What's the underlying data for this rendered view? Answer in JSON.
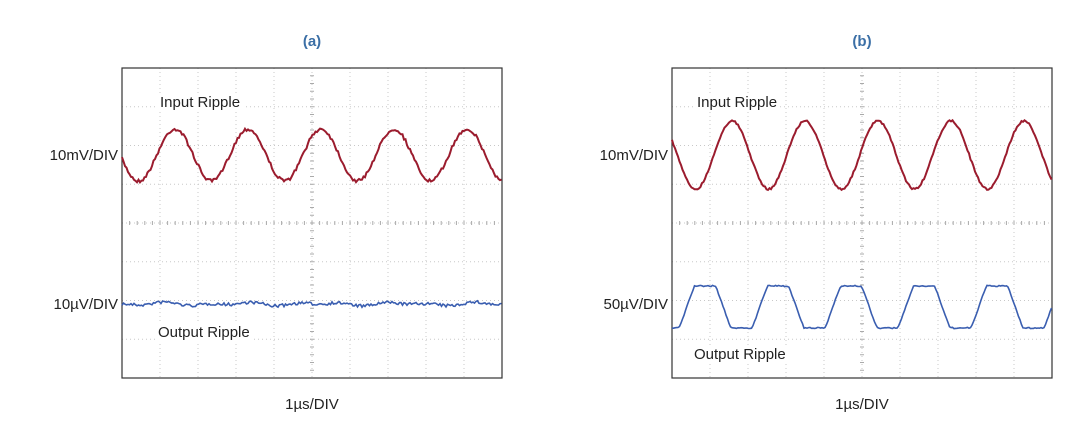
{
  "panels": [
    {
      "label": "(a)",
      "input_label": "Input Ripple",
      "input_scale": "10mV/DIV",
      "output_scale": "10µV/DIV",
      "output_label": "Output Ripple",
      "time_scale": "1µs/DIV"
    },
    {
      "label": "(b)",
      "input_label": "Input Ripple",
      "input_scale": "10mV/DIV",
      "output_scale": "50µV/DIV",
      "output_label": "Output Ripple",
      "time_scale": "1µs/DIV"
    }
  ]
}
